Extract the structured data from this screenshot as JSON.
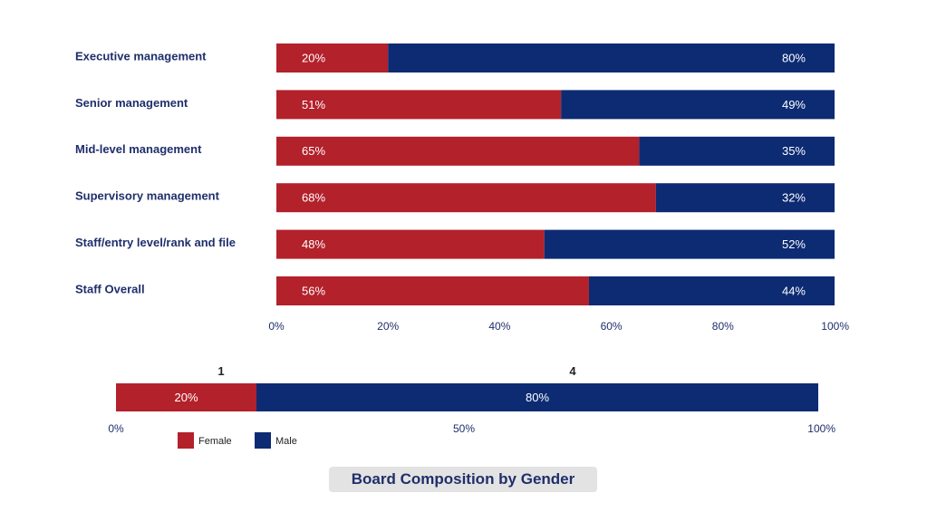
{
  "colors": {
    "female": "#b3212b",
    "male": "#0d2b73"
  },
  "chart_data": [
    {
      "type": "bar",
      "orientation": "horizontal",
      "stacked": true,
      "categories": [
        "Executive management",
        "Senior management",
        "Mid-level management",
        "Supervisory management",
        "Staff/entry level/rank and file",
        "Staff Overall"
      ],
      "series": [
        {
          "name": "Female",
          "values": [
            20,
            51,
            65,
            68,
            48,
            56
          ],
          "labels": [
            "20%",
            "51%",
            "65%",
            "68%",
            "48%",
            "56%"
          ],
          "color": "#b3212b"
        },
        {
          "name": "Male",
          "values": [
            80,
            49,
            35,
            32,
            52,
            44
          ],
          "labels": [
            "80%",
            "49%",
            "35%",
            "32%",
            "52%",
            "44%"
          ],
          "color": "#0d2b73"
        }
      ],
      "xlim": [
        0,
        100
      ],
      "xticks": [
        "0%",
        "20%",
        "40%",
        "60%",
        "80%",
        "100%"
      ],
      "grid": false
    },
    {
      "type": "bar",
      "orientation": "horizontal",
      "stacked": true,
      "title": "Board Composition by Gender",
      "series": [
        {
          "name": "Female",
          "value": 20,
          "label": "20%",
          "count": "1",
          "color": "#b3212b"
        },
        {
          "name": "Male",
          "value": 80,
          "label": "80%",
          "count": "4",
          "color": "#0d2b73"
        }
      ],
      "xlim": [
        0,
        100
      ],
      "xticks": [
        "0%",
        "50%",
        "100%"
      ],
      "legend": {
        "position": "bottom-left",
        "items": [
          "Female",
          "Male"
        ]
      }
    }
  ]
}
